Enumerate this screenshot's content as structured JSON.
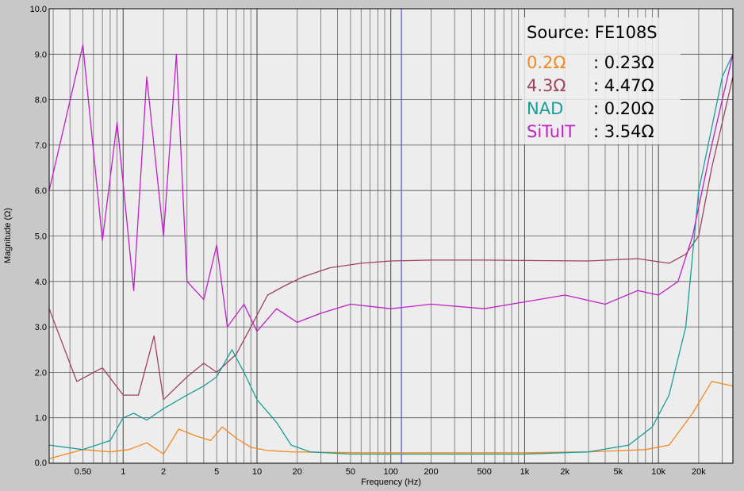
{
  "chart_data": {
    "type": "line",
    "title": "",
    "xlabel": "Frequency (Hz)",
    "ylabel": "Magnitude (Ω)",
    "xscale": "log",
    "xlim": [
      0.28,
      36000
    ],
    "ylim": [
      0,
      10
    ],
    "grid": true,
    "x_ticks": [
      {
        "value": 0.5,
        "label": "0.50"
      },
      {
        "value": 1,
        "label": "1"
      },
      {
        "value": 2,
        "label": "2"
      },
      {
        "value": 5,
        "label": "5"
      },
      {
        "value": 10,
        "label": "10"
      },
      {
        "value": 20,
        "label": "20"
      },
      {
        "value": 50,
        "label": "50"
      },
      {
        "value": 100,
        "label": "100"
      },
      {
        "value": 200,
        "label": "200"
      },
      {
        "value": 500,
        "label": "500"
      },
      {
        "value": 1000,
        "label": "1k"
      },
      {
        "value": 2000,
        "label": "2k"
      },
      {
        "value": 5000,
        "label": "5k"
      },
      {
        "value": 10000,
        "label": "10k"
      },
      {
        "value": 20000,
        "label": "20k"
      }
    ],
    "y_ticks": [
      {
        "value": 0,
        "label": "0.0"
      },
      {
        "value": 1,
        "label": "1.0"
      },
      {
        "value": 2,
        "label": "2.0"
      },
      {
        "value": 3,
        "label": "3.0"
      },
      {
        "value": 4,
        "label": "4.0"
      },
      {
        "value": 5,
        "label": "5.0"
      },
      {
        "value": 6,
        "label": "6.0"
      },
      {
        "value": 7,
        "label": "7.0"
      },
      {
        "value": 8,
        "label": "8.0"
      },
      {
        "value": 9,
        "label": "9.0"
      },
      {
        "value": 10,
        "label": "10.0"
      }
    ],
    "marker_line": {
      "x": 120,
      "color": "#5050e0"
    },
    "legend": {
      "title": "Source: FE108S",
      "placement": "top-right",
      "entries": [
        {
          "name": "0.2Ω",
          "value": ": 0.23Ω",
          "color": "#f5871f"
        },
        {
          "name": "4.3Ω",
          "value": ": 4.47Ω",
          "color": "#a0435c"
        },
        {
          "name": "NAD",
          "value": ": 0.20Ω",
          "color": "#1a9e9a"
        },
        {
          "name": "SiTuIT",
          "value": ": 3.54Ω",
          "color": "#c020c8"
        }
      ]
    },
    "series": [
      {
        "name": "0.2Ω",
        "color": "#f5871f",
        "points": [
          [
            0.28,
            0.1
          ],
          [
            0.5,
            0.3
          ],
          [
            0.8,
            0.25
          ],
          [
            1.1,
            0.3
          ],
          [
            1.5,
            0.45
          ],
          [
            2,
            0.2
          ],
          [
            2.6,
            0.75
          ],
          [
            3.5,
            0.6
          ],
          [
            4.5,
            0.5
          ],
          [
            5.5,
            0.8
          ],
          [
            7,
            0.55
          ],
          [
            9,
            0.35
          ],
          [
            12,
            0.28
          ],
          [
            18,
            0.25
          ],
          [
            30,
            0.24
          ],
          [
            60,
            0.23
          ],
          [
            150,
            0.23
          ],
          [
            400,
            0.23
          ],
          [
            1000,
            0.23
          ],
          [
            3000,
            0.25
          ],
          [
            8000,
            0.3
          ],
          [
            12000,
            0.4
          ],
          [
            18000,
            1.1
          ],
          [
            25000,
            1.8
          ],
          [
            36000,
            1.7
          ]
        ]
      },
      {
        "name": "4.3Ω",
        "color": "#a0435c",
        "points": [
          [
            0.28,
            3.4
          ],
          [
            0.45,
            1.8
          ],
          [
            0.7,
            2.1
          ],
          [
            1,
            1.5
          ],
          [
            1.3,
            1.5
          ],
          [
            1.7,
            2.8
          ],
          [
            2,
            1.4
          ],
          [
            3,
            1.9
          ],
          [
            4,
            2.2
          ],
          [
            5,
            2.0
          ],
          [
            7,
            2.4
          ],
          [
            9,
            3.0
          ],
          [
            12,
            3.7
          ],
          [
            16,
            3.9
          ],
          [
            22,
            4.1
          ],
          [
            35,
            4.3
          ],
          [
            60,
            4.4
          ],
          [
            100,
            4.45
          ],
          [
            200,
            4.47
          ],
          [
            500,
            4.47
          ],
          [
            1000,
            4.46
          ],
          [
            3000,
            4.45
          ],
          [
            7000,
            4.5
          ],
          [
            12000,
            4.4
          ],
          [
            16000,
            4.6
          ],
          [
            20000,
            5.0
          ],
          [
            25000,
            6.5
          ],
          [
            36000,
            8.5
          ]
        ]
      },
      {
        "name": "NAD",
        "color": "#1a9e9a",
        "points": [
          [
            0.28,
            0.4
          ],
          [
            0.5,
            0.3
          ],
          [
            0.8,
            0.5
          ],
          [
            1,
            1.0
          ],
          [
            1.2,
            1.1
          ],
          [
            1.5,
            0.95
          ],
          [
            2,
            1.2
          ],
          [
            3,
            1.5
          ],
          [
            4,
            1.7
          ],
          [
            5,
            1.9
          ],
          [
            6.5,
            2.5
          ],
          [
            8,
            2.0
          ],
          [
            10,
            1.4
          ],
          [
            14,
            0.9
          ],
          [
            18,
            0.4
          ],
          [
            25,
            0.25
          ],
          [
            50,
            0.2
          ],
          [
            150,
            0.2
          ],
          [
            500,
            0.2
          ],
          [
            1000,
            0.2
          ],
          [
            3000,
            0.25
          ],
          [
            6000,
            0.4
          ],
          [
            9000,
            0.8
          ],
          [
            12000,
            1.5
          ],
          [
            16000,
            3.0
          ],
          [
            20000,
            6.0
          ],
          [
            30000,
            8.5
          ],
          [
            36000,
            9.0
          ]
        ]
      },
      {
        "name": "SiTuIT",
        "color": "#c020c8",
        "points": [
          [
            0.28,
            6.0
          ],
          [
            0.5,
            9.2
          ],
          [
            0.7,
            4.9
          ],
          [
            0.9,
            7.5
          ],
          [
            1.2,
            3.8
          ],
          [
            1.5,
            8.5
          ],
          [
            2,
            5.0
          ],
          [
            2.5,
            9.0
          ],
          [
            3,
            4.0
          ],
          [
            4,
            3.6
          ],
          [
            5,
            4.8
          ],
          [
            6,
            3.0
          ],
          [
            8,
            3.5
          ],
          [
            10,
            2.9
          ],
          [
            14,
            3.4
          ],
          [
            20,
            3.1
          ],
          [
            30,
            3.3
          ],
          [
            50,
            3.5
          ],
          [
            100,
            3.4
          ],
          [
            200,
            3.5
          ],
          [
            500,
            3.4
          ],
          [
            1000,
            3.55
          ],
          [
            2000,
            3.7
          ],
          [
            4000,
            3.5
          ],
          [
            7000,
            3.8
          ],
          [
            10000,
            3.7
          ],
          [
            14000,
            4.0
          ],
          [
            18000,
            5.0
          ],
          [
            25000,
            7.0
          ],
          [
            36000,
            9.0
          ]
        ]
      }
    ]
  }
}
